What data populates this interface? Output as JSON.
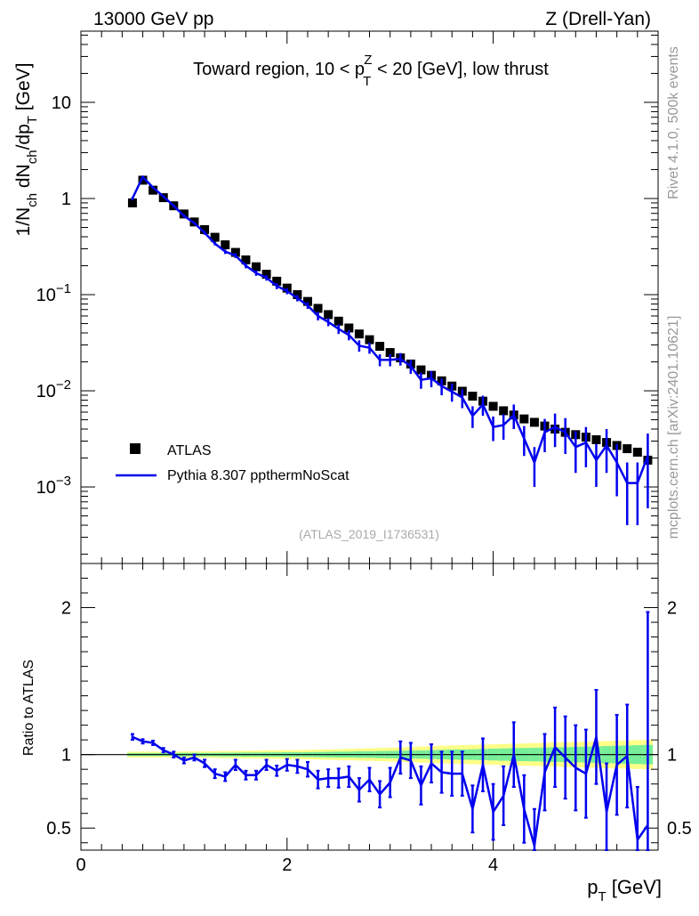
{
  "header": {
    "left": "13000 GeV pp",
    "right": "Z (Drell-Yan)"
  },
  "side_labels": {
    "rivet": "Rivet 4.1.0,  500k events",
    "mcplots": "mcplots.cern.ch [arXiv:2401.10621]"
  },
  "analysis_id": "(ATLAS_2019_I1736531)",
  "chart_data": [
    {
      "type": "line",
      "scale": "log",
      "title_parts": {
        "prefix": "Toward region, 10 < p",
        "sup": "Z",
        "sub": "T",
        "suffix": " < 20 [GeV], low thrust"
      },
      "ylabel_parts": [
        "1/N",
        "ch",
        " dN",
        "ch",
        "/dp",
        "T",
        " [GeV]"
      ],
      "xlim": [
        0,
        5.6
      ],
      "ylim": [
        0.00016,
        55
      ],
      "y_ticks": [
        {
          "v": 10,
          "label": "10"
        },
        {
          "v": 1,
          "label": "1"
        },
        {
          "v": 0.1,
          "base": "10",
          "exp": "−1"
        },
        {
          "v": 0.01,
          "base": "10",
          "exp": "−2"
        },
        {
          "v": 0.001,
          "base": "10",
          "exp": "−3"
        }
      ],
      "legend": {
        "position": "lower-left",
        "entries": [
          {
            "name": "ATLAS",
            "marker": "square",
            "color": "#000000"
          },
          {
            "name": "Pythia 8.307 ppthermNoScat",
            "marker": "line",
            "color": "#0000ee"
          }
        ]
      },
      "series": [
        {
          "name": "ATLAS",
          "color": "#000000",
          "x": [
            0.5,
            0.6,
            0.7,
            0.8,
            0.9,
            1.0,
            1.1,
            1.2,
            1.3,
            1.4,
            1.5,
            1.6,
            1.7,
            1.8,
            1.9,
            2.0,
            2.1,
            2.2,
            2.3,
            2.4,
            2.5,
            2.6,
            2.7,
            2.8,
            2.9,
            3.0,
            3.1,
            3.2,
            3.3,
            3.4,
            3.5,
            3.6,
            3.7,
            3.8,
            3.9,
            4.0,
            4.1,
            4.2,
            4.3,
            4.4,
            4.5,
            4.6,
            4.7,
            4.8,
            4.9,
            5.0,
            5.1,
            5.2,
            5.3,
            5.4,
            5.5
          ],
          "y": [
            0.9,
            1.55,
            1.22,
            1.02,
            0.84,
            0.69,
            0.57,
            0.475,
            0.395,
            0.33,
            0.275,
            0.23,
            0.195,
            0.163,
            0.138,
            0.117,
            0.1,
            0.085,
            0.072,
            0.062,
            0.053,
            0.045,
            0.039,
            0.034,
            0.029,
            0.025,
            0.022,
            0.019,
            0.0165,
            0.0145,
            0.0127,
            0.0112,
            0.0099,
            0.0088,
            0.0078,
            0.0069,
            0.0062,
            0.0056,
            0.0051,
            0.0047,
            0.0043,
            0.004,
            0.0037,
            0.0035,
            0.0033,
            0.0031,
            0.0029,
            0.0027,
            0.0025,
            0.0023,
            0.0019
          ]
        },
        {
          "name": "Pythia 8.307 ppthermNoScat",
          "color": "#0000ee",
          "x": [
            0.5,
            0.6,
            0.7,
            0.8,
            0.9,
            1.0,
            1.1,
            1.2,
            1.3,
            1.4,
            1.5,
            1.6,
            1.7,
            1.8,
            1.9,
            2.0,
            2.1,
            2.2,
            2.3,
            2.4,
            2.5,
            2.6,
            2.7,
            2.8,
            2.9,
            3.0,
            3.1,
            3.2,
            3.3,
            3.4,
            3.5,
            3.6,
            3.7,
            3.8,
            3.9,
            4.0,
            4.1,
            4.2,
            4.3,
            4.4,
            4.5,
            4.6,
            4.7,
            4.8,
            4.9,
            5.0,
            5.1,
            5.2,
            5.3,
            5.4,
            5.5
          ],
          "y": [
            1.0,
            1.68,
            1.3,
            1.05,
            0.84,
            0.66,
            0.555,
            0.44,
            0.34,
            0.28,
            0.255,
            0.2,
            0.168,
            0.15,
            0.123,
            0.109,
            0.092,
            0.077,
            0.06,
            0.052,
            0.044,
            0.038,
            0.0295,
            0.028,
            0.021,
            0.021,
            0.0215,
            0.018,
            0.013,
            0.0135,
            0.0112,
            0.0098,
            0.0085,
            0.0055,
            0.0072,
            0.0042,
            0.0044,
            0.0056,
            0.0032,
            0.0018,
            0.0037,
            0.0042,
            0.0037,
            0.0026,
            0.0029,
            0.0019,
            0.0027,
            0.0018,
            0.0011,
            0.0011,
            0.0021
          ],
          "yerr": [
            0.04,
            0.05,
            0.04,
            0.03,
            0.03,
            0.025,
            0.02,
            0.02,
            0.015,
            0.015,
            0.015,
            0.012,
            0.011,
            0.01,
            0.009,
            0.008,
            0.007,
            0.006,
            0.006,
            0.005,
            0.005,
            0.0045,
            0.004,
            0.0037,
            0.003,
            0.003,
            0.0032,
            0.003,
            0.0025,
            0.0026,
            0.0022,
            0.0021,
            0.0019,
            0.0014,
            0.0017,
            0.0012,
            0.0013,
            0.0016,
            0.0011,
            0.0008,
            0.0014,
            0.0016,
            0.0015,
            0.0012,
            0.0013,
            0.0009,
            0.0013,
            0.001,
            0.0007,
            0.0007,
            0.0015
          ]
        }
      ]
    },
    {
      "type": "line",
      "scale": "linear",
      "ylabel": "Ratio to ATLAS",
      "xlabel_parts": [
        "p",
        "T",
        " [GeV]"
      ],
      "xlim": [
        0,
        5.6
      ],
      "ylim": [
        0.35,
        2.3
      ],
      "x_ticks": [
        0,
        2,
        4
      ],
      "y_ticks": [
        0.5,
        1,
        2
      ],
      "bands": {
        "x": [
          0.5,
          0.6,
          0.7,
          0.8,
          0.9,
          1.0,
          1.1,
          1.2,
          1.3,
          1.4,
          1.5,
          1.6,
          1.7,
          1.8,
          1.9,
          2.0,
          2.1,
          2.2,
          2.3,
          2.4,
          2.5,
          2.6,
          2.7,
          2.8,
          2.9,
          3.0,
          3.1,
          3.2,
          3.3,
          3.4,
          3.5,
          3.6,
          3.7,
          3.8,
          3.9,
          4.0,
          4.1,
          4.2,
          4.3,
          4.4,
          4.5,
          4.6,
          4.7,
          4.8,
          4.9,
          5.0,
          5.1,
          5.2,
          5.3,
          5.4,
          5.5
        ],
        "inner": [
          0.01,
          0.01,
          0.01,
          0.01,
          0.01,
          0.012,
          0.012,
          0.012,
          0.012,
          0.013,
          0.013,
          0.014,
          0.014,
          0.015,
          0.015,
          0.016,
          0.016,
          0.017,
          0.018,
          0.019,
          0.02,
          0.02,
          0.022,
          0.022,
          0.024,
          0.025,
          0.026,
          0.027,
          0.028,
          0.03,
          0.032,
          0.034,
          0.035,
          0.036,
          0.038,
          0.04,
          0.042,
          0.044,
          0.045,
          0.046,
          0.048,
          0.05,
          0.05,
          0.052,
          0.054,
          0.056,
          0.058,
          0.06,
          0.062,
          0.064,
          0.066
        ],
        "outer": [
          0.02,
          0.02,
          0.02,
          0.02,
          0.02,
          0.022,
          0.022,
          0.022,
          0.023,
          0.024,
          0.025,
          0.026,
          0.027,
          0.028,
          0.029,
          0.03,
          0.031,
          0.032,
          0.034,
          0.035,
          0.037,
          0.039,
          0.041,
          0.043,
          0.045,
          0.047,
          0.049,
          0.052,
          0.055,
          0.057,
          0.06,
          0.062,
          0.064,
          0.066,
          0.068,
          0.07,
          0.072,
          0.074,
          0.076,
          0.078,
          0.08,
          0.082,
          0.084,
          0.086,
          0.088,
          0.09,
          0.092,
          0.094,
          0.096,
          0.098,
          0.1
        ],
        "inner_color": "#77ee99",
        "outer_color": "#ffff88"
      },
      "series": [
        {
          "name": "Pythia 8.307 ppthermNoScat / ATLAS",
          "color": "#0000ee",
          "x": [
            0.5,
            0.6,
            0.7,
            0.8,
            0.9,
            1.0,
            1.1,
            1.2,
            1.3,
            1.4,
            1.5,
            1.6,
            1.7,
            1.8,
            1.9,
            2.0,
            2.1,
            2.2,
            2.3,
            2.4,
            2.5,
            2.6,
            2.7,
            2.8,
            2.9,
            3.0,
            3.1,
            3.2,
            3.3,
            3.4,
            3.5,
            3.6,
            3.7,
            3.8,
            3.9,
            4.0,
            4.1,
            4.2,
            4.3,
            4.4,
            4.5,
            4.6,
            4.7,
            4.8,
            4.9,
            5.0,
            5.1,
            5.2,
            5.3,
            5.4,
            5.5
          ],
          "y": [
            1.12,
            1.09,
            1.08,
            1.03,
            1.0,
            0.96,
            0.98,
            0.94,
            0.87,
            0.85,
            0.93,
            0.86,
            0.86,
            0.93,
            0.89,
            0.93,
            0.92,
            0.9,
            0.83,
            0.84,
            0.84,
            0.85,
            0.76,
            0.83,
            0.73,
            0.81,
            0.98,
            0.96,
            0.79,
            0.94,
            0.88,
            0.87,
            0.87,
            0.63,
            0.93,
            0.61,
            0.72,
            1.0,
            0.63,
            0.38,
            0.88,
            1.05,
            0.98,
            0.91,
            0.87,
            1.12,
            0.61,
            0.93,
            0.99,
            0.42,
            0.52
          ],
          "yerr": [
            0.02,
            0.015,
            0.015,
            0.015,
            0.02,
            0.02,
            0.02,
            0.025,
            0.03,
            0.03,
            0.035,
            0.03,
            0.03,
            0.035,
            0.035,
            0.04,
            0.045,
            0.05,
            0.06,
            0.06,
            0.065,
            0.07,
            0.08,
            0.08,
            0.09,
            0.1,
            0.11,
            0.12,
            0.13,
            0.13,
            0.14,
            0.15,
            0.15,
            0.16,
            0.18,
            0.19,
            0.2,
            0.22,
            0.23,
            0.25,
            0.26,
            0.27,
            0.28,
            0.29,
            0.3,
            0.32,
            0.33,
            0.34,
            0.35,
            0.36,
            1.45
          ]
        }
      ]
    }
  ]
}
